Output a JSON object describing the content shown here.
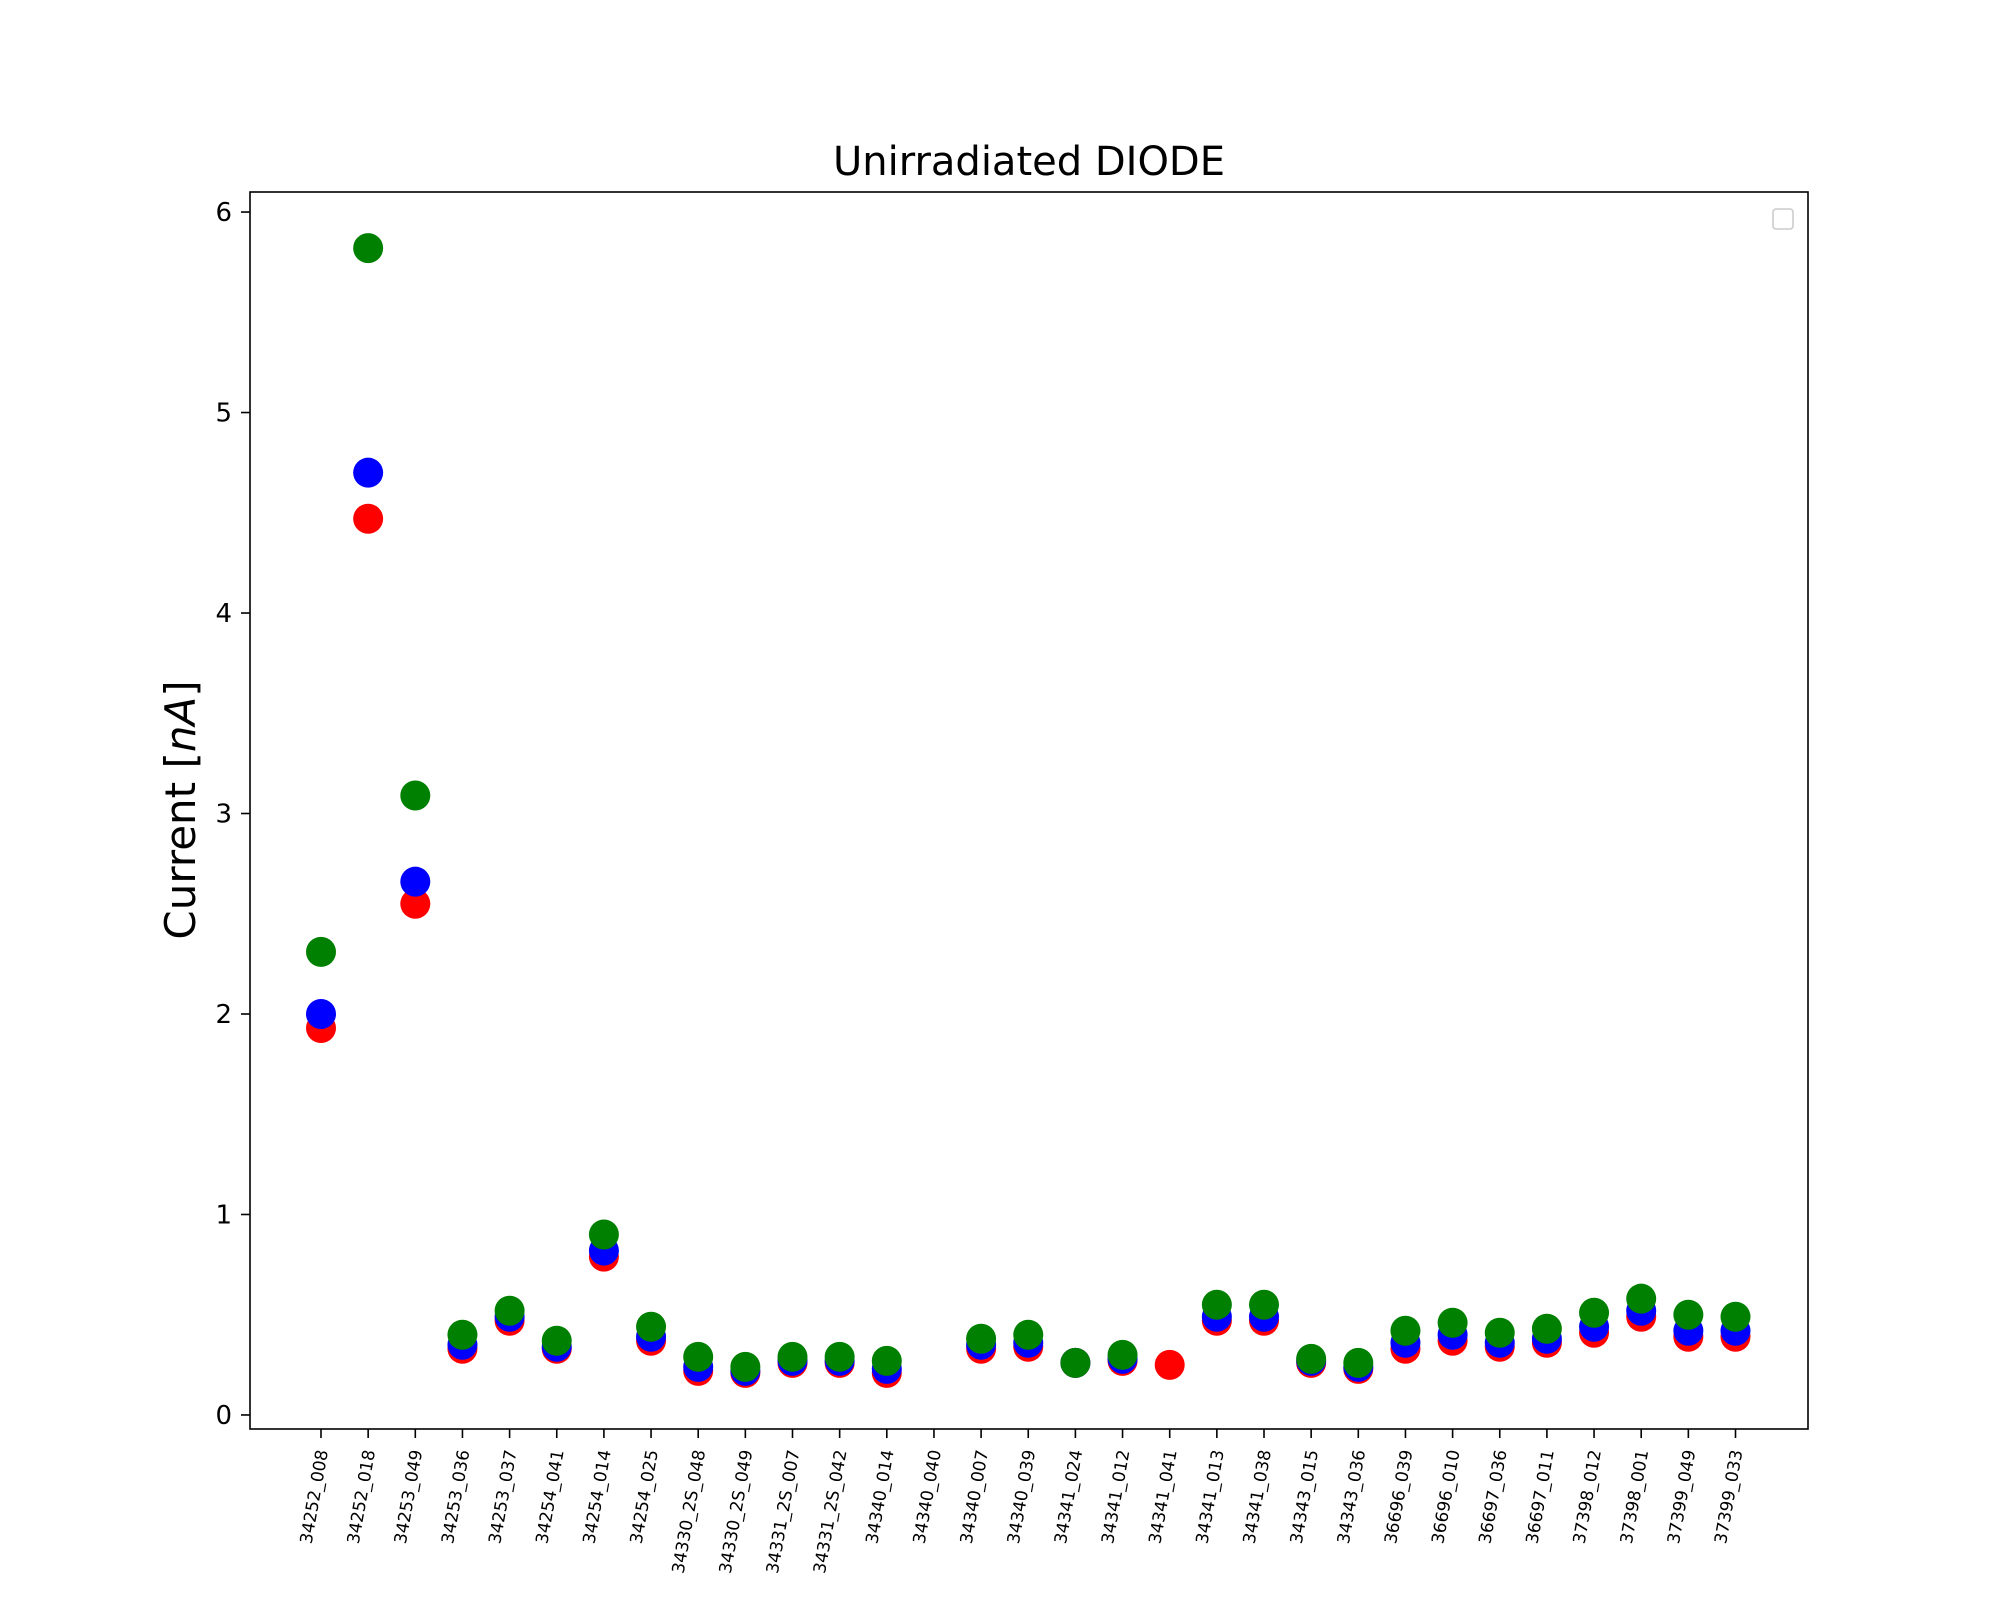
{
  "chart_data": {
    "type": "scatter",
    "title": "Unirradiated DIODE",
    "xlabel": "",
    "ylabel": "Current [nA]",
    "ylabel_main": "Current ",
    "ylabel_unit": "nA",
    "ylim": [
      -0.07,
      6.1
    ],
    "yticks": [
      0,
      1,
      2,
      3,
      4,
      5,
      6
    ],
    "grid": false,
    "legend": "top-right (empty)",
    "categories": [
      "34252_008",
      "34252_018",
      "34253_049",
      "34253_036",
      "34253_037",
      "34254_041",
      "34254_014",
      "34254_025",
      "34330_2S_048",
      "34330_2S_049",
      "34331_2S_007",
      "34331_2S_042",
      "34340_014",
      "34340_040",
      "34340_007",
      "34340_039",
      "34341_024",
      "34341_012",
      "34341_041",
      "34341_013",
      "34341_038",
      "34343_015",
      "34343_036",
      "36696_039",
      "36696_010",
      "36697_036",
      "36697_011",
      "37398_012",
      "37398_001",
      "37399_049",
      "37399_033"
    ],
    "series": [
      {
        "color": "#ff0000",
        "values": [
          1.93,
          4.47,
          2.55,
          0.33,
          0.47,
          0.33,
          0.79,
          0.37,
          0.22,
          0.21,
          0.26,
          0.26,
          0.21,
          null,
          0.33,
          0.34,
          0.26,
          0.27,
          0.25,
          0.47,
          0.47,
          0.26,
          0.23,
          0.33,
          0.37,
          0.34,
          0.36,
          0.41,
          0.49,
          0.39,
          0.39
        ]
      },
      {
        "color": "#0000ff",
        "values": [
          2.0,
          4.7,
          2.66,
          0.35,
          0.49,
          0.34,
          0.82,
          0.39,
          0.24,
          0.22,
          0.27,
          0.27,
          0.23,
          null,
          0.35,
          0.36,
          0.26,
          0.28,
          null,
          0.49,
          0.49,
          0.27,
          0.24,
          0.36,
          0.4,
          0.36,
          0.38,
          0.44,
          0.52,
          0.42,
          0.42
        ]
      },
      {
        "color": "#008000",
        "values": [
          2.31,
          5.82,
          3.09,
          0.4,
          0.52,
          0.37,
          0.9,
          0.44,
          0.29,
          0.24,
          0.29,
          0.29,
          0.27,
          null,
          0.38,
          0.4,
          0.26,
          0.3,
          null,
          0.55,
          0.55,
          0.28,
          0.26,
          0.42,
          0.46,
          0.41,
          0.43,
          0.51,
          0.58,
          0.5,
          0.49
        ]
      }
    ]
  }
}
